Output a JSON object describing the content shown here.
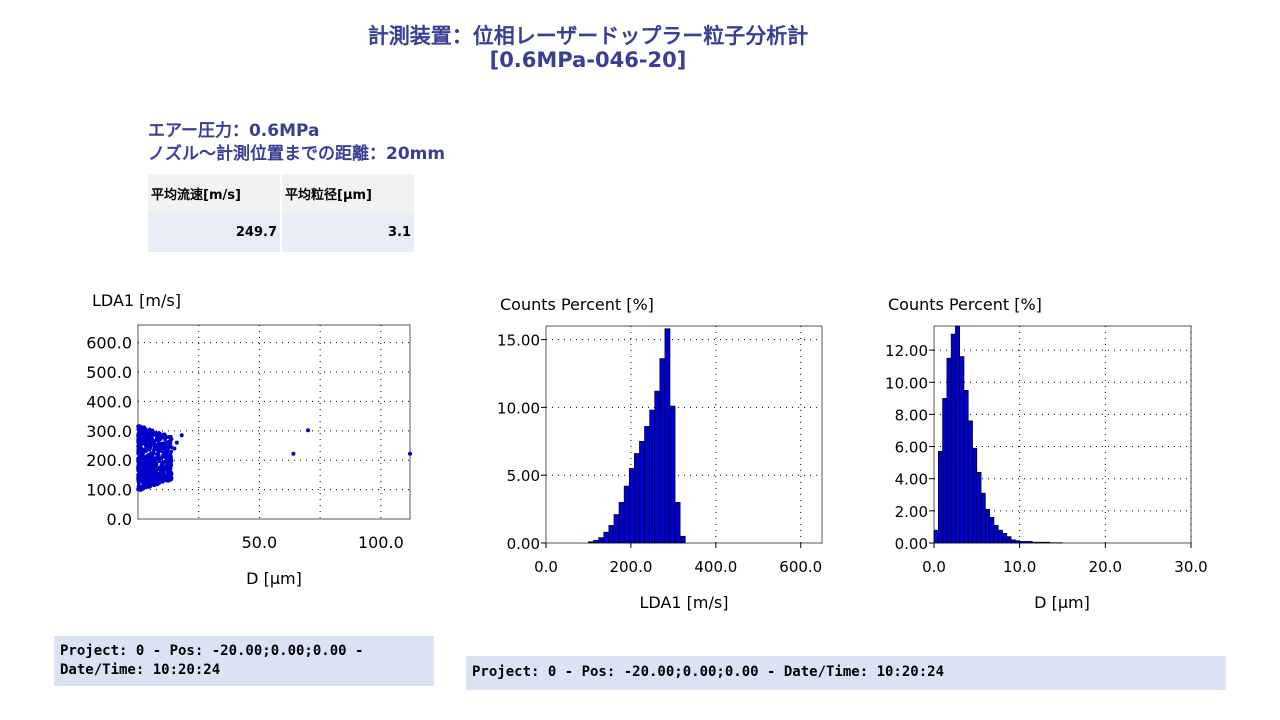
{
  "header": {
    "title": "計測装置：位相レーザードップラー粒子分析計",
    "subtitle": "[0.6MPa-046-20]"
  },
  "conditions": {
    "air_pressure": "エアー圧力：0.6MPa",
    "distance": "ノズル〜計測位置までの距離：20mm"
  },
  "summary": {
    "headers": [
      "平均流速[m/s]",
      "平均粒径[μm]"
    ],
    "values": [
      "249.7",
      "3.1"
    ]
  },
  "chart_data": [
    {
      "type": "scatter",
      "title": "",
      "ylabel": "LDA1 [m/s]",
      "xlabel": "D [μm]",
      "xlim": [
        0,
        112
      ],
      "ylim": [
        0,
        660
      ],
      "xticks": [
        "50.0",
        "100.0"
      ],
      "yticks": [
        "0.0",
        "100.0",
        "200.0",
        "300.0",
        "400.0",
        "500.0",
        "600.0"
      ],
      "grid": true,
      "series": [
        {
          "cluster": {
            "x_range": [
              0,
              14
            ],
            "y_range": [
              95,
              320
            ]
          },
          "x": [
            64,
            70,
            112,
            18,
            16,
            15,
            13
          ],
          "y": [
            222,
            302,
            222,
            285,
            260,
            240,
            170
          ]
        }
      ]
    },
    {
      "type": "bar",
      "title": "",
      "ylabel": "Counts Percent [%]",
      "xlabel": "LDA1 [m/s]",
      "xlim": [
        0,
        650
      ],
      "ylim": [
        0,
        16
      ],
      "xticks": [
        "0.0",
        "200.0",
        "400.0",
        "600.0"
      ],
      "yticks": [
        "0.00",
        "5.00",
        "10.00",
        "15.00"
      ],
      "grid": true,
      "bin_start": 100,
      "bin_width": 12,
      "values": [
        0.1,
        0.2,
        0.4,
        0.8,
        1.3,
        2.1,
        3.0,
        4.2,
        5.5,
        6.6,
        7.5,
        8.6,
        9.8,
        11.2,
        13.6,
        15.8,
        10.1,
        3.0,
        0.5
      ]
    },
    {
      "type": "bar",
      "title": "",
      "ylabel": "Counts Percent [%]",
      "xlabel": "D [μm]",
      "xlim": [
        0,
        30
      ],
      "ylim": [
        0,
        13.5
      ],
      "xticks": [
        "0.0",
        "10.0",
        "20.0",
        "30.0"
      ],
      "yticks": [
        "0.00",
        "2.00",
        "4.00",
        "6.00",
        "8.00",
        "10.00",
        "12.00"
      ],
      "grid": true,
      "bin_start": 0,
      "bin_width": 0.5,
      "values": [
        0.8,
        5.7,
        9.0,
        11.5,
        13.0,
        13.5,
        11.6,
        9.5,
        7.6,
        5.9,
        4.4,
        3.1,
        2.1,
        1.6,
        1.1,
        0.8,
        0.6,
        0.4,
        0.2,
        0.15,
        0.1,
        0.1,
        0.1,
        0.05,
        0.05,
        0.05,
        0.05,
        0.02,
        0.02,
        0.02
      ]
    }
  ],
  "footer": {
    "left_line1": "Project: 0 - Pos: -20.00;0.00;0.00 -",
    "left_line2": "Date/Time: 10:20:24",
    "right": "Project: 0 - Pos: -20.00;0.00;0.00 - Date/Time: 10:20:24"
  },
  "colors": {
    "accent": "#3a3f96",
    "data": "#0000cc",
    "footer_bg": "#dae3f4"
  }
}
